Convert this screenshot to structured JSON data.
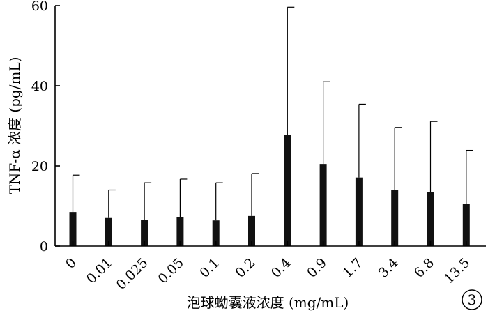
{
  "chart_data": {
    "type": "bar",
    "categories": [
      "0",
      "0.01",
      "0.025",
      "0.05",
      "0.1",
      "0.2",
      "0.4",
      "0.9",
      "1.7",
      "3.4",
      "6.8",
      "13.5"
    ],
    "series": [
      {
        "values": [
          8.5,
          7.0,
          6.5,
          7.3,
          6.4,
          7.5,
          27.7,
          20.5,
          17.1,
          14.0,
          13.5,
          10.6
        ],
        "error_upper": [
          17.7,
          14.0,
          15.8,
          16.7,
          15.8,
          18.1,
          59.6,
          41.0,
          35.4,
          29.6,
          31.1,
          23.9
        ]
      }
    ],
    "xlabel": "泡球蚴囊液浓度 (mg/mL)",
    "ylabel": "TNF-α 浓度 (pg/mL)",
    "ylim": [
      0,
      60
    ],
    "yticks": [
      0,
      20,
      40,
      60
    ],
    "grid": false,
    "bar_color": "#111111",
    "badge": "3"
  }
}
